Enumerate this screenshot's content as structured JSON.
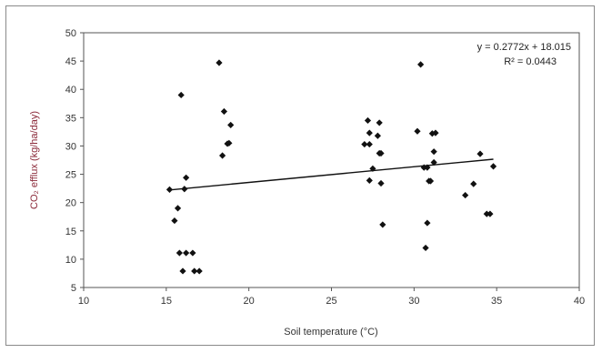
{
  "chart_data": {
    "type": "scatter",
    "title": "",
    "xlabel": "Soil temperature (°C)",
    "ylabel": "CO₂ efflux (kg/ha/day)",
    "xlim": [
      10,
      40
    ],
    "ylim": [
      5,
      50
    ],
    "xticks": [
      10,
      15,
      20,
      25,
      30,
      35,
      40
    ],
    "yticks": [
      5,
      10,
      15,
      20,
      25,
      30,
      35,
      40,
      45,
      50
    ],
    "grid": false,
    "legend": "none",
    "marker_color": "#111111",
    "trendline": {
      "slope": 0.2772,
      "intercept": 18.015,
      "x_range": [
        15.2,
        34.8
      ],
      "equation": "y = 0.2772x + 18.015",
      "r_squared": "R² = 0.0443"
    },
    "points": [
      {
        "x": 15.2,
        "y": 22.3
      },
      {
        "x": 15.5,
        "y": 16.8
      },
      {
        "x": 15.7,
        "y": 19.0
      },
      {
        "x": 15.8,
        "y": 11.1
      },
      {
        "x": 15.9,
        "y": 39.0
      },
      {
        "x": 16.0,
        "y": 7.9
      },
      {
        "x": 16.1,
        "y": 22.4
      },
      {
        "x": 16.2,
        "y": 11.1
      },
      {
        "x": 16.2,
        "y": 24.4
      },
      {
        "x": 16.6,
        "y": 11.1
      },
      {
        "x": 16.7,
        "y": 7.9
      },
      {
        "x": 17.0,
        "y": 7.9
      },
      {
        "x": 18.2,
        "y": 44.7
      },
      {
        "x": 18.4,
        "y": 28.3
      },
      {
        "x": 18.5,
        "y": 36.1
      },
      {
        "x": 18.7,
        "y": 30.4
      },
      {
        "x": 18.8,
        "y": 30.5
      },
      {
        "x": 18.9,
        "y": 33.7
      },
      {
        "x": 27.0,
        "y": 30.3
      },
      {
        "x": 27.2,
        "y": 34.5
      },
      {
        "x": 27.3,
        "y": 32.3
      },
      {
        "x": 27.3,
        "y": 30.3
      },
      {
        "x": 27.3,
        "y": 23.9
      },
      {
        "x": 27.5,
        "y": 26.0
      },
      {
        "x": 27.8,
        "y": 31.8
      },
      {
        "x": 27.9,
        "y": 28.7
      },
      {
        "x": 27.9,
        "y": 34.1
      },
      {
        "x": 28.0,
        "y": 23.4
      },
      {
        "x": 28.0,
        "y": 28.7
      },
      {
        "x": 28.1,
        "y": 16.1
      },
      {
        "x": 30.2,
        "y": 32.6
      },
      {
        "x": 30.4,
        "y": 44.4
      },
      {
        "x": 30.6,
        "y": 26.2
      },
      {
        "x": 30.7,
        "y": 12.0
      },
      {
        "x": 30.8,
        "y": 16.4
      },
      {
        "x": 30.8,
        "y": 26.2
      },
      {
        "x": 30.9,
        "y": 23.8
      },
      {
        "x": 31.0,
        "y": 23.8
      },
      {
        "x": 31.1,
        "y": 32.2
      },
      {
        "x": 31.2,
        "y": 29.0
      },
      {
        "x": 31.2,
        "y": 27.1
      },
      {
        "x": 31.3,
        "y": 32.3
      },
      {
        "x": 33.1,
        "y": 21.3
      },
      {
        "x": 33.6,
        "y": 23.3
      },
      {
        "x": 34.0,
        "y": 28.6
      },
      {
        "x": 34.4,
        "y": 18.0
      },
      {
        "x": 34.6,
        "y": 18.0
      },
      {
        "x": 34.8,
        "y": 26.4
      }
    ]
  }
}
